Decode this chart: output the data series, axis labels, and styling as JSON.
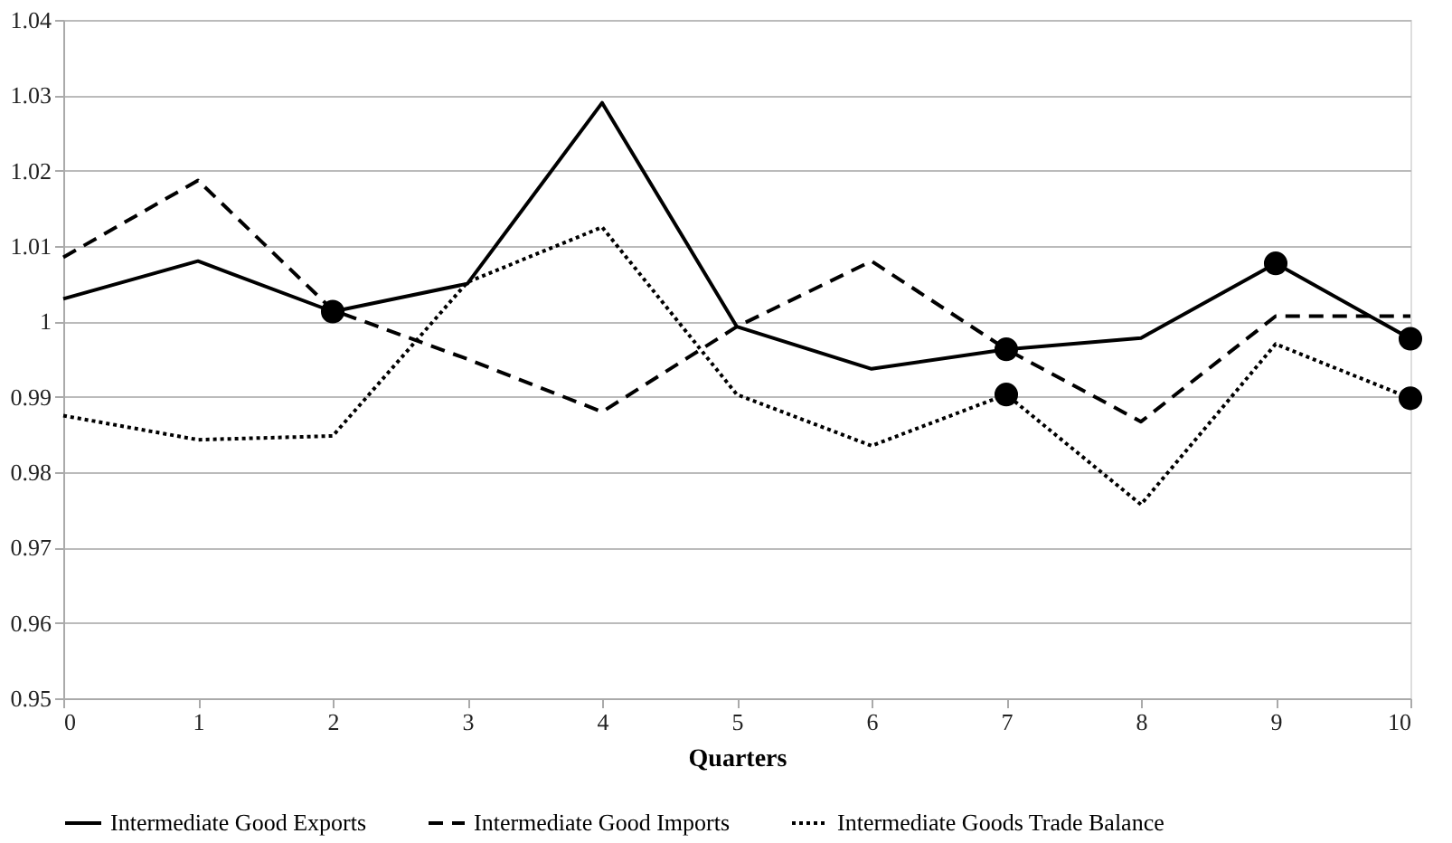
{
  "chart_data": {
    "type": "line",
    "xlabel": "Quarters",
    "x": [
      0,
      1,
      2,
      3,
      4,
      5,
      6,
      7,
      8,
      9,
      10
    ],
    "xlim": [
      0,
      10
    ],
    "xticks": [
      0,
      1,
      2,
      3,
      4,
      5,
      6,
      7,
      8,
      9,
      10
    ],
    "ylim": [
      0.95,
      1.04
    ],
    "yticks": [
      0.95,
      0.96,
      0.97,
      0.98,
      0.99,
      1,
      1.01,
      1.02,
      1.03,
      1.04
    ],
    "grid": "y",
    "legend": "bottom",
    "series": [
      {
        "name": "Intermediate Good Exports",
        "color": "#000000",
        "line_style": "solid",
        "marker": "none",
        "values": [
          1.003,
          1.008,
          1.0013,
          1.005,
          1.029,
          0.9993,
          0.9937,
          0.9963,
          0.9978,
          1.0077,
          0.9977
        ]
      },
      {
        "name": "Intermediate Good Imports",
        "color": "#000000",
        "line_style": "dashed",
        "marker": "none",
        "values": [
          1.0085,
          1.0187,
          1.0015,
          0.995,
          0.988,
          0.9993,
          1.008,
          0.9963,
          0.9867,
          1.0007,
          1.0007
        ]
      },
      {
        "name": "Intermediate Goods Trade Balance",
        "color": "#000000",
        "line_style": "dotted",
        "marker": "none",
        "values": [
          0.9875,
          0.9843,
          0.9848,
          1.0052,
          1.0125,
          0.9903,
          0.9835,
          0.9903,
          0.9757,
          0.997,
          0.9898
        ]
      },
      {
        "type": "scatter",
        "color": "#000000",
        "marker": "circle",
        "x": [
          2,
          7,
          7,
          9,
          10,
          10
        ],
        "values": [
          1.0013,
          0.9963,
          0.9903,
          1.0077,
          0.9977,
          0.9898
        ]
      }
    ]
  }
}
